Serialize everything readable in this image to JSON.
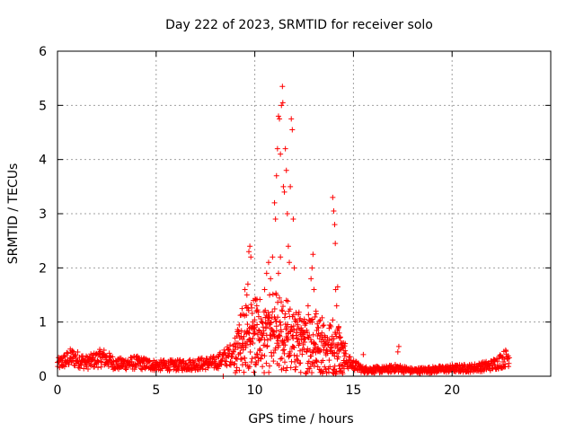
{
  "chart_data": {
    "type": "scatter",
    "title": "Day 222 of 2023, SRMTID for receiver solo",
    "xlabel": "GPS time / hours",
    "ylabel": "SRMTID / TECUs",
    "xlim": [
      0,
      25
    ],
    "ylim": [
      0,
      6
    ],
    "xticks": [
      "0",
      "5",
      "10",
      "15",
      "20"
    ],
    "yticks": [
      "0",
      "1",
      "2",
      "3",
      "4",
      "5",
      "6"
    ],
    "xtick_values": [
      0,
      5,
      10,
      15,
      20
    ],
    "ytick_values": [
      0,
      1,
      2,
      3,
      4,
      5,
      6
    ],
    "grid": true,
    "marker": "+",
    "series_color": "#ff0000",
    "background_noise": {
      "x_range": [
        0,
        22.9
      ],
      "profile": [
        [
          0.0,
          0.22
        ],
        [
          0.7,
          0.35
        ],
        [
          1.5,
          0.25
        ],
        [
          2.3,
          0.35
        ],
        [
          3.0,
          0.22
        ],
        [
          4.0,
          0.25
        ],
        [
          5.0,
          0.2
        ],
        [
          6.0,
          0.2
        ],
        [
          7.0,
          0.22
        ],
        [
          8.0,
          0.25
        ],
        [
          9.0,
          0.45
        ],
        [
          10.0,
          0.55
        ],
        [
          11.0,
          0.6
        ],
        [
          12.0,
          0.5
        ],
        [
          13.0,
          0.45
        ],
        [
          14.0,
          0.4
        ],
        [
          14.8,
          0.25
        ],
        [
          15.5,
          0.12
        ],
        [
          16.5,
          0.12
        ],
        [
          17.2,
          0.15
        ],
        [
          18.0,
          0.1
        ],
        [
          19.0,
          0.12
        ],
        [
          20.0,
          0.14
        ],
        [
          21.0,
          0.15
        ],
        [
          22.0,
          0.2
        ],
        [
          22.8,
          0.35
        ]
      ]
    },
    "points": [
      [
        8.4,
        0.0
      ],
      [
        9.5,
        1.6
      ],
      [
        9.6,
        1.5
      ],
      [
        9.7,
        2.3
      ],
      [
        9.75,
        2.4
      ],
      [
        9.8,
        2.2
      ],
      [
        9.65,
        1.7
      ],
      [
        9.55,
        1.3
      ],
      [
        9.9,
        1.0
      ],
      [
        10.0,
        0.9
      ],
      [
        10.1,
        1.3
      ],
      [
        10.2,
        1.1
      ],
      [
        10.3,
        0.8
      ],
      [
        10.5,
        1.6
      ],
      [
        10.6,
        1.9
      ],
      [
        10.7,
        2.1
      ],
      [
        10.75,
        1.5
      ],
      [
        10.8,
        1.8
      ],
      [
        10.9,
        2.2
      ],
      [
        11.0,
        3.2
      ],
      [
        11.05,
        2.9
      ],
      [
        11.1,
        3.7
      ],
      [
        11.15,
        4.2
      ],
      [
        11.2,
        4.8
      ],
      [
        11.25,
        4.75
      ],
      [
        11.3,
        4.1
      ],
      [
        11.35,
        5.0
      ],
      [
        11.4,
        5.35
      ],
      [
        11.42,
        5.05
      ],
      [
        11.45,
        3.5
      ],
      [
        11.5,
        3.4
      ],
      [
        11.55,
        4.2
      ],
      [
        11.6,
        3.8
      ],
      [
        11.65,
        3.0
      ],
      [
        11.7,
        2.4
      ],
      [
        11.75,
        2.1
      ],
      [
        11.8,
        3.5
      ],
      [
        11.85,
        4.75
      ],
      [
        11.9,
        4.55
      ],
      [
        11.95,
        2.9
      ],
      [
        12.0,
        2.0
      ],
      [
        11.3,
        2.2
      ],
      [
        11.2,
        1.9
      ],
      [
        11.1,
        1.5
      ],
      [
        11.4,
        1.2
      ],
      [
        11.6,
        1.4
      ],
      [
        12.1,
        1.0
      ],
      [
        12.3,
        0.8
      ],
      [
        12.5,
        0.7
      ],
      [
        12.7,
        1.3
      ],
      [
        12.8,
        1.0
      ],
      [
        12.85,
        1.8
      ],
      [
        12.9,
        2.0
      ],
      [
        12.95,
        2.25
      ],
      [
        13.0,
        1.6
      ],
      [
        13.1,
        1.2
      ],
      [
        13.2,
        0.9
      ],
      [
        13.4,
        0.8
      ],
      [
        13.6,
        0.6
      ],
      [
        13.95,
        3.3
      ],
      [
        14.0,
        3.05
      ],
      [
        14.05,
        2.8
      ],
      [
        14.08,
        2.45
      ],
      [
        14.1,
        1.6
      ],
      [
        14.2,
        1.65
      ],
      [
        14.15,
        1.3
      ],
      [
        14.25,
        0.9
      ],
      [
        14.3,
        0.7
      ],
      [
        15.5,
        0.4
      ],
      [
        17.3,
        0.55
      ],
      [
        17.25,
        0.45
      ]
    ]
  }
}
